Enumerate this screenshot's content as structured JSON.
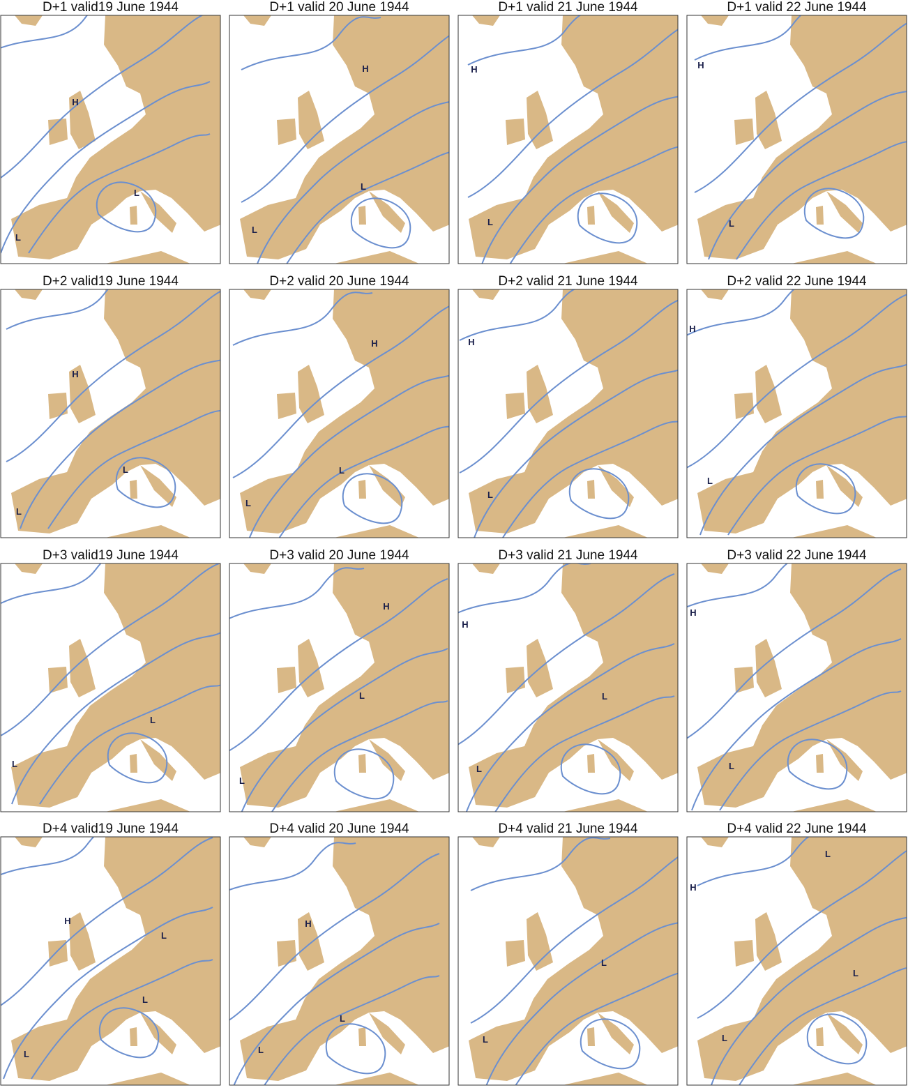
{
  "panels": [
    {
      "title": "D+1 valid19 June 1944",
      "labels": [
        "H",
        "L",
        "L"
      ]
    },
    {
      "title": "D+1 valid 20 June 1944",
      "labels": [
        "H",
        "L",
        "L"
      ]
    },
    {
      "title": "D+1 valid 21 June 1944",
      "labels": [
        "H",
        "L"
      ]
    },
    {
      "title": "D+1 valid 22 June 1944",
      "labels": [
        "H",
        "L"
      ]
    },
    {
      "title": "D+2 valid19 June 1944",
      "labels": [
        "H",
        "L",
        "L"
      ]
    },
    {
      "title": "D+2 valid 20 June 1944",
      "labels": [
        "H",
        "L",
        "L"
      ]
    },
    {
      "title": "D+2 valid 21 June 1944",
      "labels": [
        "H",
        "L"
      ]
    },
    {
      "title": "D+2 valid 22 June 1944",
      "labels": [
        "H",
        "L"
      ]
    },
    {
      "title": "D+3 valid19 June 1944",
      "labels": [
        "L",
        "L"
      ]
    },
    {
      "title": "D+3 valid 20 June 1944",
      "labels": [
        "H",
        "L",
        "L"
      ]
    },
    {
      "title": "D+3 valid 21 June 1944",
      "labels": [
        "H",
        "L",
        "L"
      ]
    },
    {
      "title": "D+3 valid 22 June 1944",
      "labels": [
        "H",
        "L"
      ]
    },
    {
      "title": "D+4 valid19 June 1944",
      "labels": [
        "H",
        "L",
        "L",
        "L"
      ]
    },
    {
      "title": "D+4 valid 20 June 1944",
      "labels": [
        "H",
        "L",
        "L"
      ]
    },
    {
      "title": "D+4 valid 21 June 1944",
      "labels": [
        "L",
        "L"
      ]
    },
    {
      "title": "D+4 valid 22 June 1944",
      "labels": [
        "H",
        "L",
        "L",
        "L"
      ]
    }
  ]
}
